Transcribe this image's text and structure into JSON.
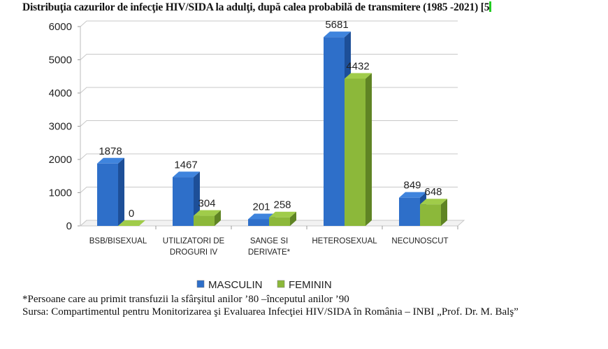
{
  "title": "Distribuţia cazurilor de infecţie HIV/SIDA la adulţi, după calea probabilă de transmitere (1985 -2021) [5",
  "chart_data": {
    "type": "bar",
    "style": "3d-clustered-column",
    "categories": [
      [
        "BSB/BISEXUAL"
      ],
      [
        "UTILIZATORI DE",
        "DROGURI IV"
      ],
      [
        "SANGE SI",
        "DERIVATE*"
      ],
      [
        "HETEROSEXUAL"
      ],
      [
        "NECUNOSCUT"
      ]
    ],
    "series": [
      {
        "name": "MASCULIN",
        "values": [
          1878,
          1467,
          201,
          5681,
          849
        ],
        "color": "#2e6fc9"
      },
      {
        "name": "FEMININ",
        "values": [
          0,
          304,
          258,
          4432,
          648
        ],
        "color": "#8cb83a"
      }
    ],
    "ylim": [
      0,
      6000
    ],
    "yticks": [
      0,
      1000,
      2000,
      3000,
      4000,
      5000,
      6000
    ],
    "grid": true,
    "legend": "bottom"
  },
  "footnote": "*Persoane care au primit transfuzii la sfârşitul anilor ’80 –începutul anilor ’90",
  "source": "Sursa: Compartimentul pentru Monitorizarea şi Evaluarea Infecţiei HIV/SIDA în România – INBI „Prof. Dr. M. Balş”"
}
